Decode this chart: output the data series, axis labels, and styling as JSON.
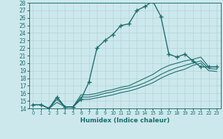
{
  "xlabel": "Humidex (Indice chaleur)",
  "bg_color": "#cce8ec",
  "grid_color": "#aed4d8",
  "line_color": "#1a6b6b",
  "xlim": [
    -0.5,
    23.5
  ],
  "ylim": [
    14,
    28
  ],
  "xticks": [
    0,
    1,
    2,
    3,
    4,
    5,
    6,
    7,
    8,
    9,
    10,
    11,
    12,
    13,
    14,
    15,
    16,
    17,
    18,
    19,
    20,
    21,
    22,
    23
  ],
  "yticks": [
    14,
    15,
    16,
    17,
    18,
    19,
    20,
    21,
    22,
    23,
    24,
    25,
    26,
    27,
    28
  ],
  "series": [
    {
      "x": [
        0,
        1,
        2,
        3,
        4,
        5,
        6,
        7,
        8,
        9,
        10,
        11,
        12,
        13,
        14,
        15,
        16,
        17,
        18,
        19,
        20,
        21,
        22,
        23
      ],
      "y": [
        14.5,
        14.5,
        14.0,
        15.5,
        14.2,
        14.2,
        15.2,
        17.5,
        22.0,
        23.0,
        23.8,
        25.0,
        25.2,
        27.0,
        27.5,
        28.2,
        26.2,
        21.2,
        20.8,
        21.2,
        20.3,
        19.5,
        19.5,
        19.5
      ],
      "marker": "+",
      "markersize": 4,
      "linewidth": 1.0
    },
    {
      "x": [
        0,
        1,
        2,
        3,
        4,
        5,
        6,
        7,
        8,
        9,
        10,
        11,
        12,
        13,
        14,
        15,
        16,
        17,
        18,
        19,
        20,
        21,
        22,
        23
      ],
      "y": [
        14.5,
        14.5,
        14.0,
        15.5,
        14.2,
        14.2,
        15.8,
        15.8,
        16.0,
        16.3,
        16.5,
        16.8,
        17.0,
        17.5,
        18.0,
        18.5,
        19.2,
        19.7,
        20.0,
        20.3,
        20.5,
        20.8,
        19.5,
        19.5
      ],
      "marker": null,
      "markersize": 0,
      "linewidth": 0.8
    },
    {
      "x": [
        0,
        1,
        2,
        3,
        4,
        5,
        6,
        7,
        8,
        9,
        10,
        11,
        12,
        13,
        14,
        15,
        16,
        17,
        18,
        19,
        20,
        21,
        22,
        23
      ],
      "y": [
        14.5,
        14.5,
        14.0,
        15.2,
        14.2,
        14.2,
        15.5,
        15.5,
        15.7,
        16.0,
        16.2,
        16.5,
        16.7,
        17.0,
        17.4,
        17.9,
        18.5,
        19.0,
        19.4,
        19.7,
        20.0,
        20.3,
        19.3,
        19.2
      ],
      "marker": null,
      "markersize": 0,
      "linewidth": 0.8
    },
    {
      "x": [
        0,
        1,
        2,
        3,
        4,
        5,
        6,
        7,
        8,
        9,
        10,
        11,
        12,
        13,
        14,
        15,
        16,
        17,
        18,
        19,
        20,
        21,
        22,
        23
      ],
      "y": [
        14.5,
        14.5,
        14.0,
        14.8,
        14.2,
        14.2,
        15.2,
        15.2,
        15.4,
        15.6,
        15.8,
        16.1,
        16.3,
        16.6,
        17.0,
        17.4,
        18.0,
        18.5,
        18.9,
        19.2,
        19.7,
        20.0,
        19.0,
        18.9
      ],
      "marker": null,
      "markersize": 0,
      "linewidth": 0.8
    }
  ]
}
